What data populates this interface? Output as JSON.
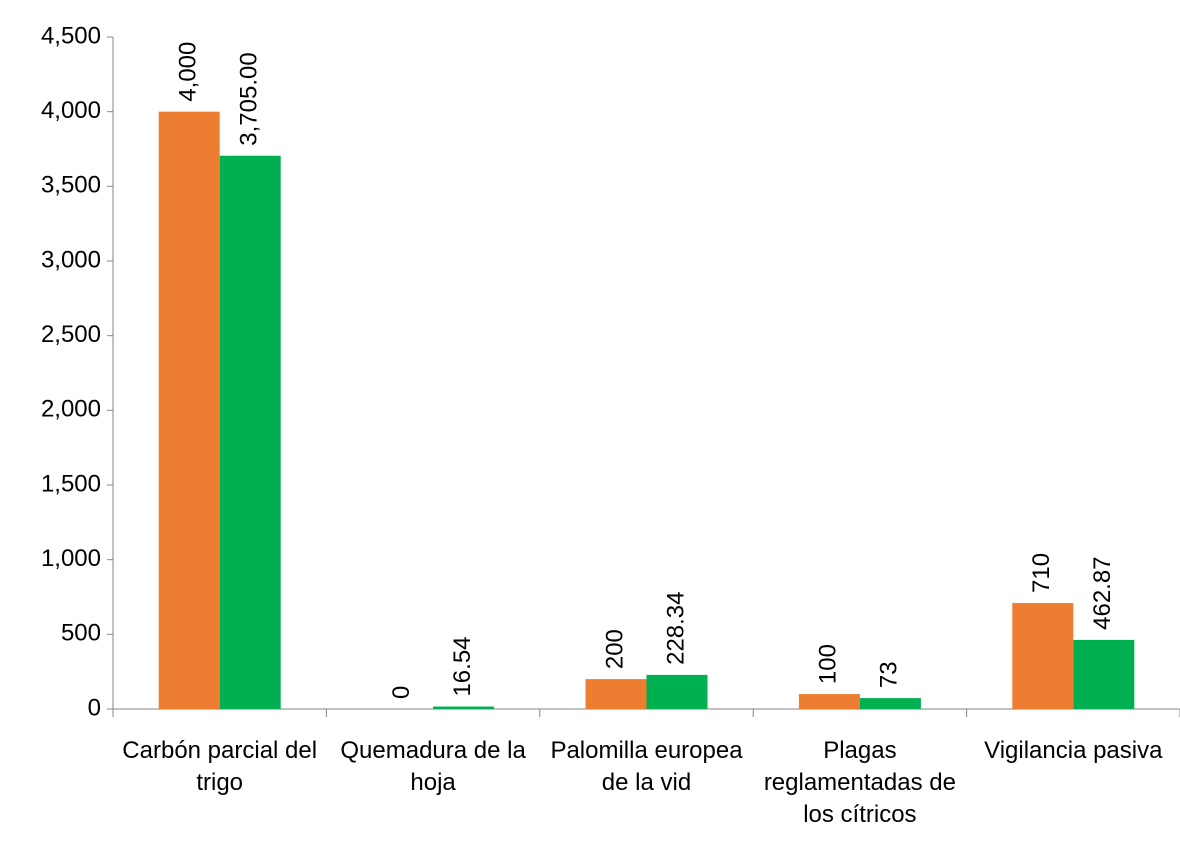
{
  "chart_data": {
    "type": "bar",
    "categories": [
      "Carbón parcial del trigo",
      "Quemadura de la hoja",
      "Palomilla europea de la vid",
      "Plagas reglamentadas de los cítricos",
      "Vigilancia pasiva"
    ],
    "series": [
      {
        "color": "#ED7D31",
        "values": [
          4000,
          0,
          200,
          100,
          710
        ],
        "value_labels": [
          "4,000",
          "0",
          "200",
          "100",
          "710"
        ]
      },
      {
        "color": "#00B050",
        "values": [
          3705,
          16.54,
          228.34,
          73,
          462.87
        ],
        "value_labels": [
          "3,705.00",
          "16.54",
          "228.34",
          "73",
          "462.87"
        ]
      }
    ],
    "ylim": [
      0,
      4500
    ],
    "yticks": [
      0,
      500,
      {
        "value": 1000,
        "label": "1,000"
      },
      {
        "value": 1500,
        "label": "1,500"
      },
      {
        "value": 2000,
        "label": "2,000"
      },
      {
        "value": 2500,
        "label": "2,500"
      },
      {
        "value": 3000,
        "label": "3,000"
      },
      {
        "value": 3500,
        "label": "3,500"
      },
      {
        "value": 4000,
        "label": "4,000"
      },
      {
        "value": 4500,
        "label": "4,500"
      }
    ]
  }
}
